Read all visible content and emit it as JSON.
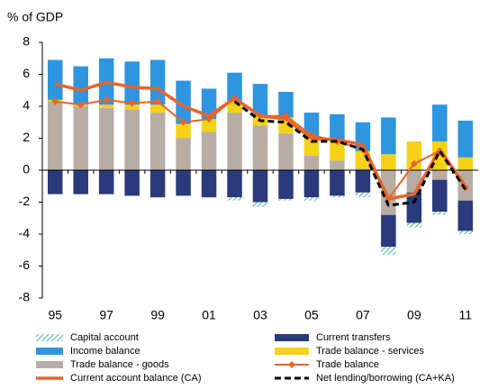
{
  "chart_data": {
    "type": "bar",
    "y_label": "% of GDP",
    "categories": [
      "95",
      null,
      "97",
      null,
      "99",
      null,
      "01",
      null,
      "03",
      null,
      "05",
      null,
      "07",
      null,
      "09",
      null,
      "11"
    ],
    "ylim": [
      -8,
      8
    ],
    "yticks": [
      -8,
      -6,
      -4,
      -2,
      0,
      2,
      4,
      6,
      8
    ],
    "grid": false,
    "series": [
      {
        "name": "Capital account",
        "kind": "bar",
        "color": "#5fc4ae",
        "hatch": true,
        "values": [
          0,
          0,
          0,
          0,
          0,
          0,
          0,
          -0.2,
          -0.3,
          -0.1,
          -0.2,
          -0.1,
          -0.3,
          -0.5,
          -0.3,
          -0.2,
          -0.2
        ]
      },
      {
        "name": "Current transfers",
        "kind": "bar",
        "color": "#2b3a7a",
        "values": [
          -1.5,
          -1.5,
          -1.5,
          -1.6,
          -1.7,
          -1.6,
          -1.7,
          -1.7,
          -2.0,
          -1.8,
          -1.7,
          -1.6,
          -1.4,
          -2.0,
          -1.9,
          -2.0,
          -1.9
        ]
      },
      {
        "name": "Income balance",
        "kind": "bar",
        "color": "#2e95e0",
        "values": [
          2.5,
          2.4,
          2.9,
          2.7,
          2.8,
          2.7,
          1.9,
          1.8,
          2.0,
          1.6,
          1.5,
          1.7,
          1.8,
          2.3,
          0,
          2.3,
          2.3
        ]
      },
      {
        "name": "Trade balance - services",
        "kind": "bar",
        "color": "#f5d218",
        "values": [
          0.1,
          0.1,
          0.2,
          0.3,
          0.5,
          0.9,
          0.8,
          0.7,
          0.6,
          1.0,
          1.2,
          1.2,
          1.1,
          1.0,
          1.8,
          1.8,
          0.8
        ]
      },
      {
        "name": "Trade balance - goods",
        "kind": "bar",
        "color": "#b8ada4",
        "values": [
          4.3,
          4.0,
          3.9,
          3.8,
          3.6,
          2.0,
          2.4,
          3.6,
          2.8,
          2.3,
          0.9,
          0.6,
          0.1,
          -2.8,
          -1.4,
          -0.6,
          -1.9
        ]
      },
      {
        "name": "Trade balance",
        "kind": "line",
        "color": "#e8642a",
        "marker": "diamond",
        "values": [
          4.3,
          4.1,
          4.4,
          4.2,
          4.3,
          3.0,
          3.2,
          4.5,
          3.4,
          3.4,
          2.2,
          1.8,
          1.3,
          -1.8,
          0.4,
          1.2,
          -1.1
        ]
      },
      {
        "name": "Current account balance (CA)",
        "kind": "line",
        "color": "#e8642a",
        "values": [
          5.4,
          5.0,
          5.5,
          5.2,
          5.1,
          4.0,
          3.4,
          4.5,
          3.4,
          3.2,
          2.0,
          1.9,
          1.6,
          -1.8,
          -1.5,
          1.3,
          -1.0
        ]
      },
      {
        "name": "Net lending/borrowing (CA+KA)",
        "kind": "line",
        "color": "#000000",
        "dash": true,
        "values": [
          null,
          null,
          null,
          null,
          null,
          null,
          null,
          4.3,
          3.1,
          3.0,
          1.8,
          1.8,
          1.3,
          -2.2,
          -2.0,
          1.2,
          -1.2
        ]
      }
    ]
  }
}
